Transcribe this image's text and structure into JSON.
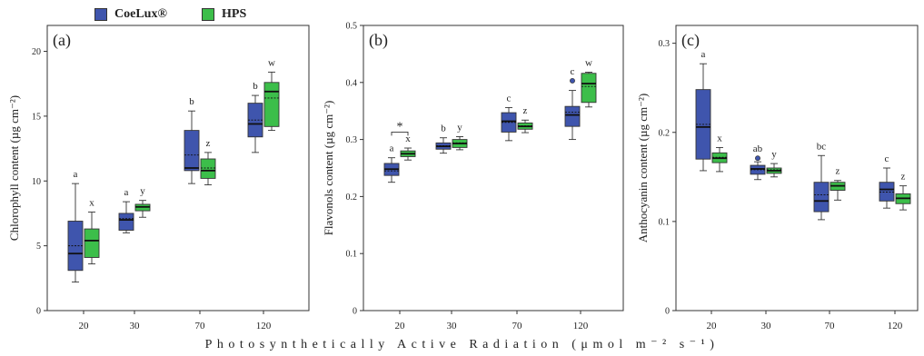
{
  "legend": [
    {
      "name": "CoeLux®",
      "color": "#3f55ad"
    },
    {
      "name": "HPS",
      "color": "#3cbe4a"
    }
  ],
  "x_axis_title": "Photosynthetically Active Radiation (μmol m⁻² s⁻¹)",
  "chart_data": [
    {
      "type": "box",
      "panel": "(a)",
      "ylabel": "Chlorophyll content (µg cm⁻²)",
      "categories": [
        "20",
        "30",
        "70",
        "120"
      ],
      "ylim": [
        0,
        22
      ],
      "yticks": [
        0,
        5,
        10,
        15,
        20
      ],
      "series": [
        {
          "name": "CoeLux®",
          "color": "#3f55ad",
          "boxes": [
            {
              "whisker_low": 2.2,
              "q1": 3.1,
              "median": 4.4,
              "mean": 5.0,
              "q3": 6.9,
              "whisker_high": 9.8,
              "letter": "a"
            },
            {
              "whisker_low": 6.0,
              "q1": 6.2,
              "median": 7.0,
              "mean": 7.1,
              "q3": 7.5,
              "whisker_high": 8.4,
              "letter": "a"
            },
            {
              "whisker_low": 9.8,
              "q1": 10.8,
              "median": 11.0,
              "mean": 12.0,
              "q3": 13.9,
              "whisker_high": 15.4,
              "letter": "b"
            },
            {
              "whisker_low": 12.2,
              "q1": 13.4,
              "median": 14.4,
              "mean": 14.7,
              "q3": 16.0,
              "whisker_high": 16.6,
              "letter": "b"
            }
          ]
        },
        {
          "name": "HPS",
          "color": "#3cbe4a",
          "boxes": [
            {
              "whisker_low": 3.6,
              "q1": 4.1,
              "median": 5.4,
              "mean": 5.4,
              "q3": 6.3,
              "whisker_high": 7.6,
              "letter": "x"
            },
            {
              "whisker_low": 7.2,
              "q1": 7.7,
              "median": 8.0,
              "mean": 8.0,
              "q3": 8.2,
              "whisker_high": 8.5,
              "letter": "y"
            },
            {
              "whisker_low": 9.7,
              "q1": 10.2,
              "median": 10.8,
              "mean": 11.0,
              "q3": 11.7,
              "whisker_high": 12.2,
              "letter": "z"
            },
            {
              "whisker_low": 13.9,
              "q1": 14.2,
              "median": 16.9,
              "mean": 16.4,
              "q3": 17.6,
              "whisker_high": 18.4,
              "letter": "w"
            }
          ]
        }
      ]
    },
    {
      "type": "box",
      "panel": "(b)",
      "ylabel": "Flavonols content (µg cm⁻²)",
      "categories": [
        "20",
        "30",
        "70",
        "120"
      ],
      "ylim": [
        0,
        0.5
      ],
      "yticks": [
        0,
        0.1,
        0.2,
        0.3,
        0.4,
        0.5
      ],
      "annotation": "*",
      "series": [
        {
          "name": "CoeLux®",
          "color": "#3f55ad",
          "boxes": [
            {
              "whisker_low": 0.225,
              "q1": 0.237,
              "median": 0.248,
              "mean": 0.245,
              "q3": 0.258,
              "whisker_high": 0.268,
              "letter": "a"
            },
            {
              "whisker_low": 0.276,
              "q1": 0.283,
              "median": 0.288,
              "mean": 0.289,
              "q3": 0.294,
              "whisker_high": 0.303,
              "letter": "b"
            },
            {
              "whisker_low": 0.298,
              "q1": 0.313,
              "median": 0.332,
              "mean": 0.33,
              "q3": 0.347,
              "whisker_high": 0.356,
              "letter": "c"
            },
            {
              "whisker_low": 0.3,
              "q1": 0.323,
              "median": 0.343,
              "mean": 0.348,
              "q3": 0.358,
              "whisker_high": 0.386,
              "outlier": 0.403,
              "letter": "c"
            }
          ]
        },
        {
          "name": "HPS",
          "color": "#3cbe4a",
          "boxes": [
            {
              "whisker_low": 0.264,
              "q1": 0.27,
              "median": 0.275,
              "mean": 0.275,
              "q3": 0.28,
              "whisker_high": 0.285,
              "letter": "x"
            },
            {
              "whisker_low": 0.282,
              "q1": 0.286,
              "median": 0.293,
              "mean": 0.294,
              "q3": 0.3,
              "whisker_high": 0.305,
              "letter": "y"
            },
            {
              "whisker_low": 0.312,
              "q1": 0.318,
              "median": 0.323,
              "mean": 0.324,
              "q3": 0.329,
              "whisker_high": 0.334,
              "letter": "z"
            },
            {
              "whisker_low": 0.357,
              "q1": 0.365,
              "median": 0.398,
              "mean": 0.393,
              "q3": 0.416,
              "whisker_high": 0.418,
              "letter": "w"
            }
          ]
        }
      ]
    },
    {
      "type": "box",
      "panel": "(c)",
      "ylabel": "Anthocyanin content (µg cm⁻²)",
      "categories": [
        "20",
        "30",
        "70",
        "120"
      ],
      "ylim": [
        0,
        0.32
      ],
      "yticks": [
        0,
        0.1,
        0.2,
        0.3
      ],
      "series": [
        {
          "name": "CoeLux®",
          "color": "#3f55ad",
          "boxes": [
            {
              "whisker_low": 0.157,
              "q1": 0.17,
              "median": 0.206,
              "mean": 0.209,
              "q3": 0.248,
              "whisker_high": 0.277,
              "letter": "a"
            },
            {
              "whisker_low": 0.147,
              "q1": 0.153,
              "median": 0.159,
              "mean": 0.158,
              "q3": 0.163,
              "whisker_high": 0.167,
              "outlier": 0.171,
              "letter": "ab"
            },
            {
              "whisker_low": 0.102,
              "q1": 0.111,
              "median": 0.123,
              "mean": 0.13,
              "q3": 0.144,
              "whisker_high": 0.174,
              "letter": "bc"
            },
            {
              "whisker_low": 0.115,
              "q1": 0.123,
              "median": 0.136,
              "mean": 0.133,
              "q3": 0.144,
              "whisker_high": 0.16,
              "letter": "c"
            }
          ]
        },
        {
          "name": "HPS",
          "color": "#3cbe4a",
          "boxes": [
            {
              "whisker_low": 0.156,
              "q1": 0.166,
              "median": 0.171,
              "mean": 0.172,
              "q3": 0.177,
              "whisker_high": 0.183,
              "letter": "x"
            },
            {
              "whisker_low": 0.15,
              "q1": 0.154,
              "median": 0.157,
              "mean": 0.158,
              "q3": 0.16,
              "whisker_high": 0.165,
              "letter": "y"
            },
            {
              "whisker_low": 0.124,
              "q1": 0.135,
              "median": 0.14,
              "mean": 0.14,
              "q3": 0.144,
              "whisker_high": 0.146,
              "letter": "z"
            },
            {
              "whisker_low": 0.113,
              "q1": 0.12,
              "median": 0.126,
              "mean": 0.126,
              "q3": 0.131,
              "whisker_high": 0.14,
              "letter": "z"
            }
          ]
        }
      ]
    }
  ]
}
